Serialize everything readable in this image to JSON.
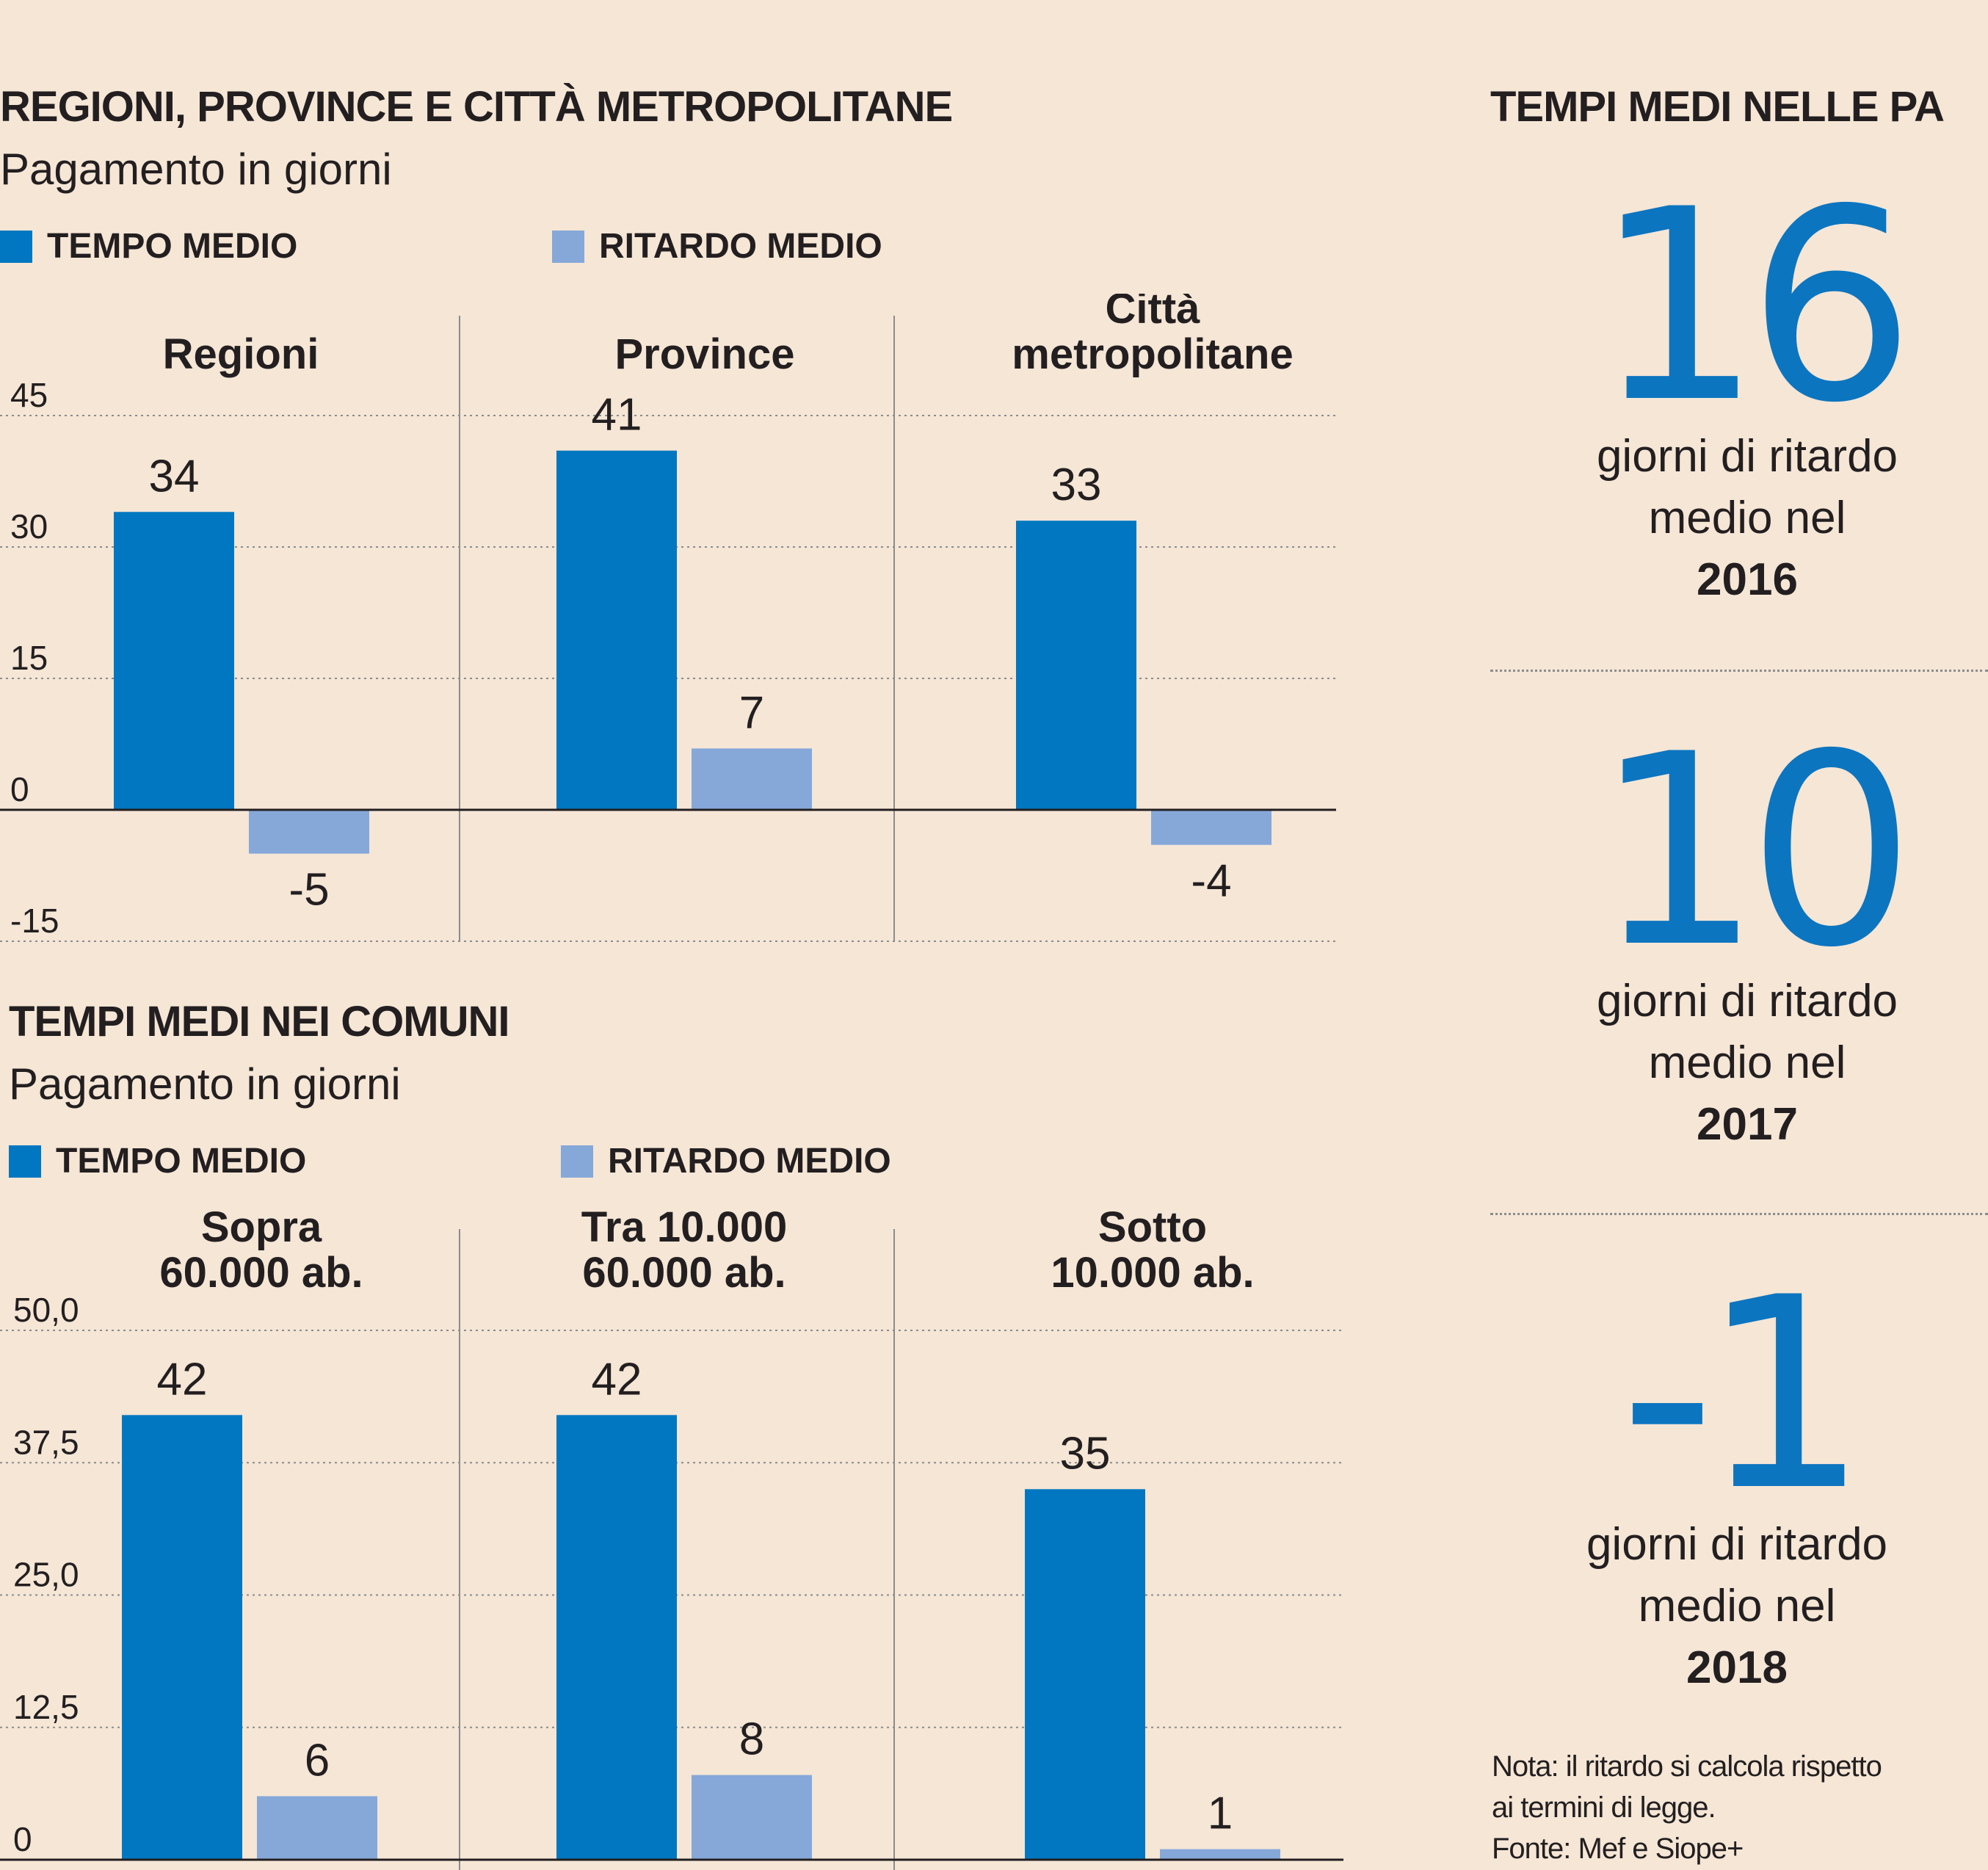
{
  "colors": {
    "tempo": "#0077c0",
    "ritardo": "#85a8d9",
    "bignum": "#0c75c0",
    "text": "#231f20"
  },
  "chart_data": [
    {
      "type": "bar",
      "title": "REGIONI, PROVINCE E CITTÀ METROPOLITANE",
      "subtitle": "Pagamento in giorni",
      "legend": [
        "TEMPO MEDIO",
        "RITARDO MEDIO"
      ],
      "categories": [
        "Regioni",
        "Province",
        "Città metropolitane"
      ],
      "category_lines": [
        [
          "Regioni"
        ],
        [
          "Province"
        ],
        [
          "Città",
          "metropolitane"
        ]
      ],
      "series": [
        {
          "name": "TEMPO MEDIO",
          "values": [
            34,
            41,
            33
          ]
        },
        {
          "name": "RITARDO MEDIO",
          "values": [
            -5,
            7,
            -4
          ]
        }
      ],
      "ylim": [
        -15,
        45
      ],
      "yticks": [
        45,
        30,
        15,
        0,
        -15
      ],
      "ytick_labels": [
        "45",
        "30",
        "15",
        "0",
        "-15"
      ],
      "value_labels": [
        [
          "34",
          "41",
          "33"
        ],
        [
          "-5",
          "7",
          "-4"
        ]
      ]
    },
    {
      "type": "bar",
      "title": "TEMPI MEDI NEI COMUNI",
      "subtitle": "Pagamento in giorni",
      "legend": [
        "TEMPO MEDIO",
        "RITARDO MEDIO"
      ],
      "categories": [
        "Sopra 60.000 ab.",
        "Tra 10.000 60.000 ab.",
        "Sotto 10.000 ab."
      ],
      "category_lines": [
        [
          "Sopra",
          "60.000 ab."
        ],
        [
          "Tra 10.000",
          "60.000 ab."
        ],
        [
          "Sotto",
          "10.000 ab."
        ]
      ],
      "series": [
        {
          "name": "TEMPO MEDIO",
          "values": [
            42,
            42,
            35
          ]
        },
        {
          "name": "RITARDO MEDIO",
          "values": [
            6,
            8,
            1
          ]
        }
      ],
      "ylim": [
        0,
        50
      ],
      "yticks": [
        50,
        37.5,
        25,
        12.5,
        0
      ],
      "ytick_labels": [
        "50,0",
        "37,5",
        "25,0",
        "12,5",
        "0"
      ],
      "value_labels": [
        [
          "42",
          "42",
          "35"
        ],
        [
          "6",
          "8",
          "1"
        ]
      ]
    }
  ],
  "right": {
    "title": "TEMPI MEDI NELLE PA",
    "stats": [
      {
        "value": "16",
        "line1": "giorni di ritardo",
        "line2": "medio nel",
        "year": "2016"
      },
      {
        "value": "10",
        "line1": "giorni di ritardo",
        "line2": "medio nel",
        "year": "2017"
      },
      {
        "value": "-1",
        "line1": "giorni di ritardo",
        "line2": "medio nel",
        "year": "2018"
      }
    ],
    "note_line1": "Nota: il ritardo si calcola rispetto",
    "note_line2": "ai termini di legge.",
    "source": "Fonte: Mef e Siope+"
  }
}
